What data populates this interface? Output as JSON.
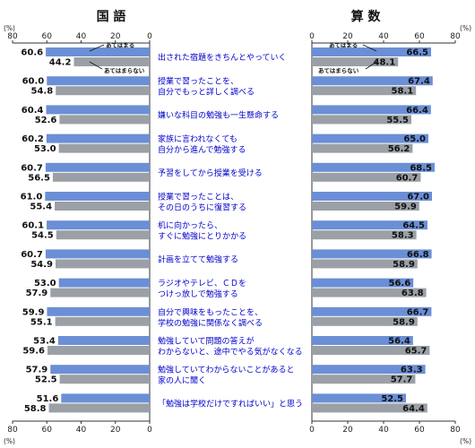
{
  "title_left": "国 語",
  "title_right": "算 数",
  "unit_label": "(%)",
  "legend": {
    "agree": "あてはまる",
    "disagree": "あてはまらない"
  },
  "colors": {
    "agree": "#6b8fd6",
    "disagree": "#9aa0a6",
    "item_text": "#0000cc"
  },
  "chart_data": {
    "type": "bar",
    "orientation": "horizontal",
    "xlim": [
      0,
      80
    ],
    "ticks": [
      0,
      20,
      40,
      60,
      80
    ],
    "categories": [
      [
        "出された宿題をきちんとやっていく"
      ],
      [
        "授業で習ったことを、",
        "自分でもっと詳しく調べる"
      ],
      [
        "嫌いな科目の勉強も一生懸命する"
      ],
      [
        "家族に言われなくても",
        "自分から進んで勉強する"
      ],
      [
        "予習をしてから授業を受ける"
      ],
      [
        "授業で習ったことは、",
        "その日のうちに復習する"
      ],
      [
        "机に向かったら、",
        "すぐに勉強にとりかかる"
      ],
      [
        "計画を立てて勉強する"
      ],
      [
        "ラジオやテレビ、ＣＤを",
        "つけっ放しで勉強する"
      ],
      [
        "自分で興味をもったことを、",
        "学校の勉強に関係なく調べる"
      ],
      [
        "勉強していて問題の答えが",
        "わからないと、途中でやる気がなくなる"
      ],
      [
        "勉強していてわからないことがあると",
        "家の人に聞く"
      ],
      [
        "「勉強は学校だけですればいい」と思う"
      ]
    ],
    "charts": [
      {
        "subject": "国語",
        "series": [
          {
            "name": "あてはまる",
            "values": [
              60.6,
              60.0,
              60.4,
              60.2,
              60.7,
              61.0,
              60.1,
              60.7,
              53.0,
              59.9,
              53.4,
              57.9,
              51.6
            ]
          },
          {
            "name": "あてはまらない",
            "values": [
              44.2,
              54.8,
              52.6,
              53.0,
              56.5,
              55.4,
              54.5,
              54.9,
              57.9,
              55.1,
              59.6,
              52.5,
              58.8
            ]
          }
        ]
      },
      {
        "subject": "算数",
        "series": [
          {
            "name": "あてはまる",
            "values": [
              66.5,
              67.4,
              66.4,
              65.0,
              68.5,
              67.0,
              64.5,
              66.8,
              56.6,
              66.7,
              56.4,
              63.3,
              52.5
            ]
          },
          {
            "name": "あてはまらない",
            "values": [
              48.1,
              58.1,
              55.5,
              56.2,
              60.7,
              59.9,
              58.3,
              58.9,
              63.8,
              58.9,
              65.7,
              57.7,
              64.4
            ]
          }
        ]
      }
    ]
  }
}
